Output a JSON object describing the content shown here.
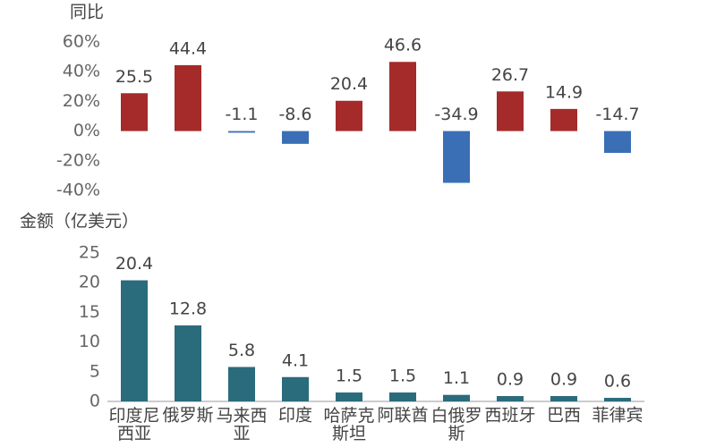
{
  "chart_data": [
    {
      "type": "bar",
      "ylabel": "同比",
      "categories": [
        "印度尼西亚",
        "俄罗斯",
        "马来西亚",
        "印度",
        "哈萨克斯坦",
        "阿联酋",
        "白俄罗斯",
        "西班牙",
        "巴西",
        "菲律宾"
      ],
      "values": [
        25.5,
        44.4,
        -1.1,
        -8.6,
        20.4,
        46.6,
        -34.9,
        26.7,
        14.9,
        -14.7
      ],
      "color": "#a52a2a",
      "negative_color": "#3a6fb5",
      "ylim": [
        -40,
        60
      ],
      "yticks": [
        {
          "value": -40,
          "label": "-40%"
        },
        {
          "value": -20,
          "label": "-20%"
        },
        {
          "value": 0,
          "label": "0%"
        },
        {
          "value": 20,
          "label": "20%"
        },
        {
          "value": 40,
          "label": "40%"
        },
        {
          "value": 60,
          "label": "60%"
        }
      ]
    },
    {
      "type": "bar",
      "ylabel": "金额（亿美元）",
      "categories": [
        "印度尼西亚",
        "俄罗斯",
        "马来西亚",
        "印度",
        "哈萨克斯坦",
        "阿联酋",
        "白俄罗斯",
        "西班牙",
        "巴西",
        "菲律宾"
      ],
      "values": [
        20.4,
        12.8,
        5.8,
        4.1,
        1.5,
        1.5,
        1.1,
        0.9,
        0.9,
        0.6
      ],
      "color": "#2a6b7c",
      "ylim": [
        0,
        25
      ],
      "yticks": [
        0,
        5,
        10,
        15,
        20,
        25
      ]
    }
  ]
}
